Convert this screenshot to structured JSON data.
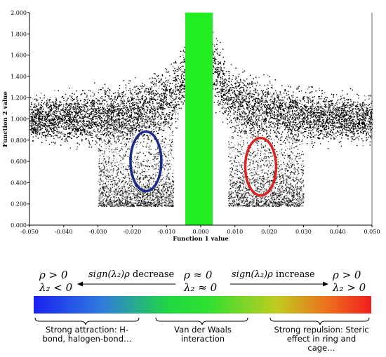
{
  "chart_data": {
    "type": "scatter",
    "xlabel": "Function 1 value",
    "ylabel": "Function 2 value",
    "xlim": [
      -0.05,
      0.05
    ],
    "ylim": [
      0,
      2.0
    ],
    "x_ticks": [
      "-0.050",
      "-0.040",
      "-0.030",
      "-0.020",
      "-0.010",
      "0.000",
      "0.010",
      "0.020",
      "0.030",
      "0.040",
      "0.050"
    ],
    "y_ticks": [
      "0.000",
      "0.200",
      "0.400",
      "0.600",
      "0.800",
      "1.000",
      "1.200",
      "1.400",
      "1.600",
      "1.800",
      "2.000"
    ],
    "vertical_band": {
      "x_range": [
        -0.0045,
        0.0035
      ],
      "color": "#22ee22"
    },
    "circles": [
      {
        "cx": -0.016,
        "cy": 0.6,
        "rx": 0.0045,
        "ry": 0.28,
        "color": "#1c2a8a"
      },
      {
        "cx": 0.0175,
        "cy": 0.55,
        "rx": 0.0045,
        "ry": 0.27,
        "color": "#dd2222"
      }
    ]
  },
  "legend": {
    "left_rho": "ρ > 0",
    "left_lambda": "λ₂ < 0",
    "center_rho": "ρ ≈ 0",
    "center_lambda": "λ₂ ≈ 0",
    "right_rho": "ρ > 0",
    "right_lambda": "λ₂ > 0",
    "decrease_sign": "sign(λ₂)ρ",
    "decrease_word": "decrease",
    "increase_sign": "sign(λ₂)ρ",
    "increase_word": "increase",
    "colors": [
      "#1a22f0",
      "#20d840",
      "#f01e1e"
    ],
    "captions": {
      "left": "Strong attraction: H-bond, halogen-bond…",
      "middle": "Van der Waals interaction",
      "right": "Strong repulsion: Steric effect in ring and cage…"
    }
  }
}
